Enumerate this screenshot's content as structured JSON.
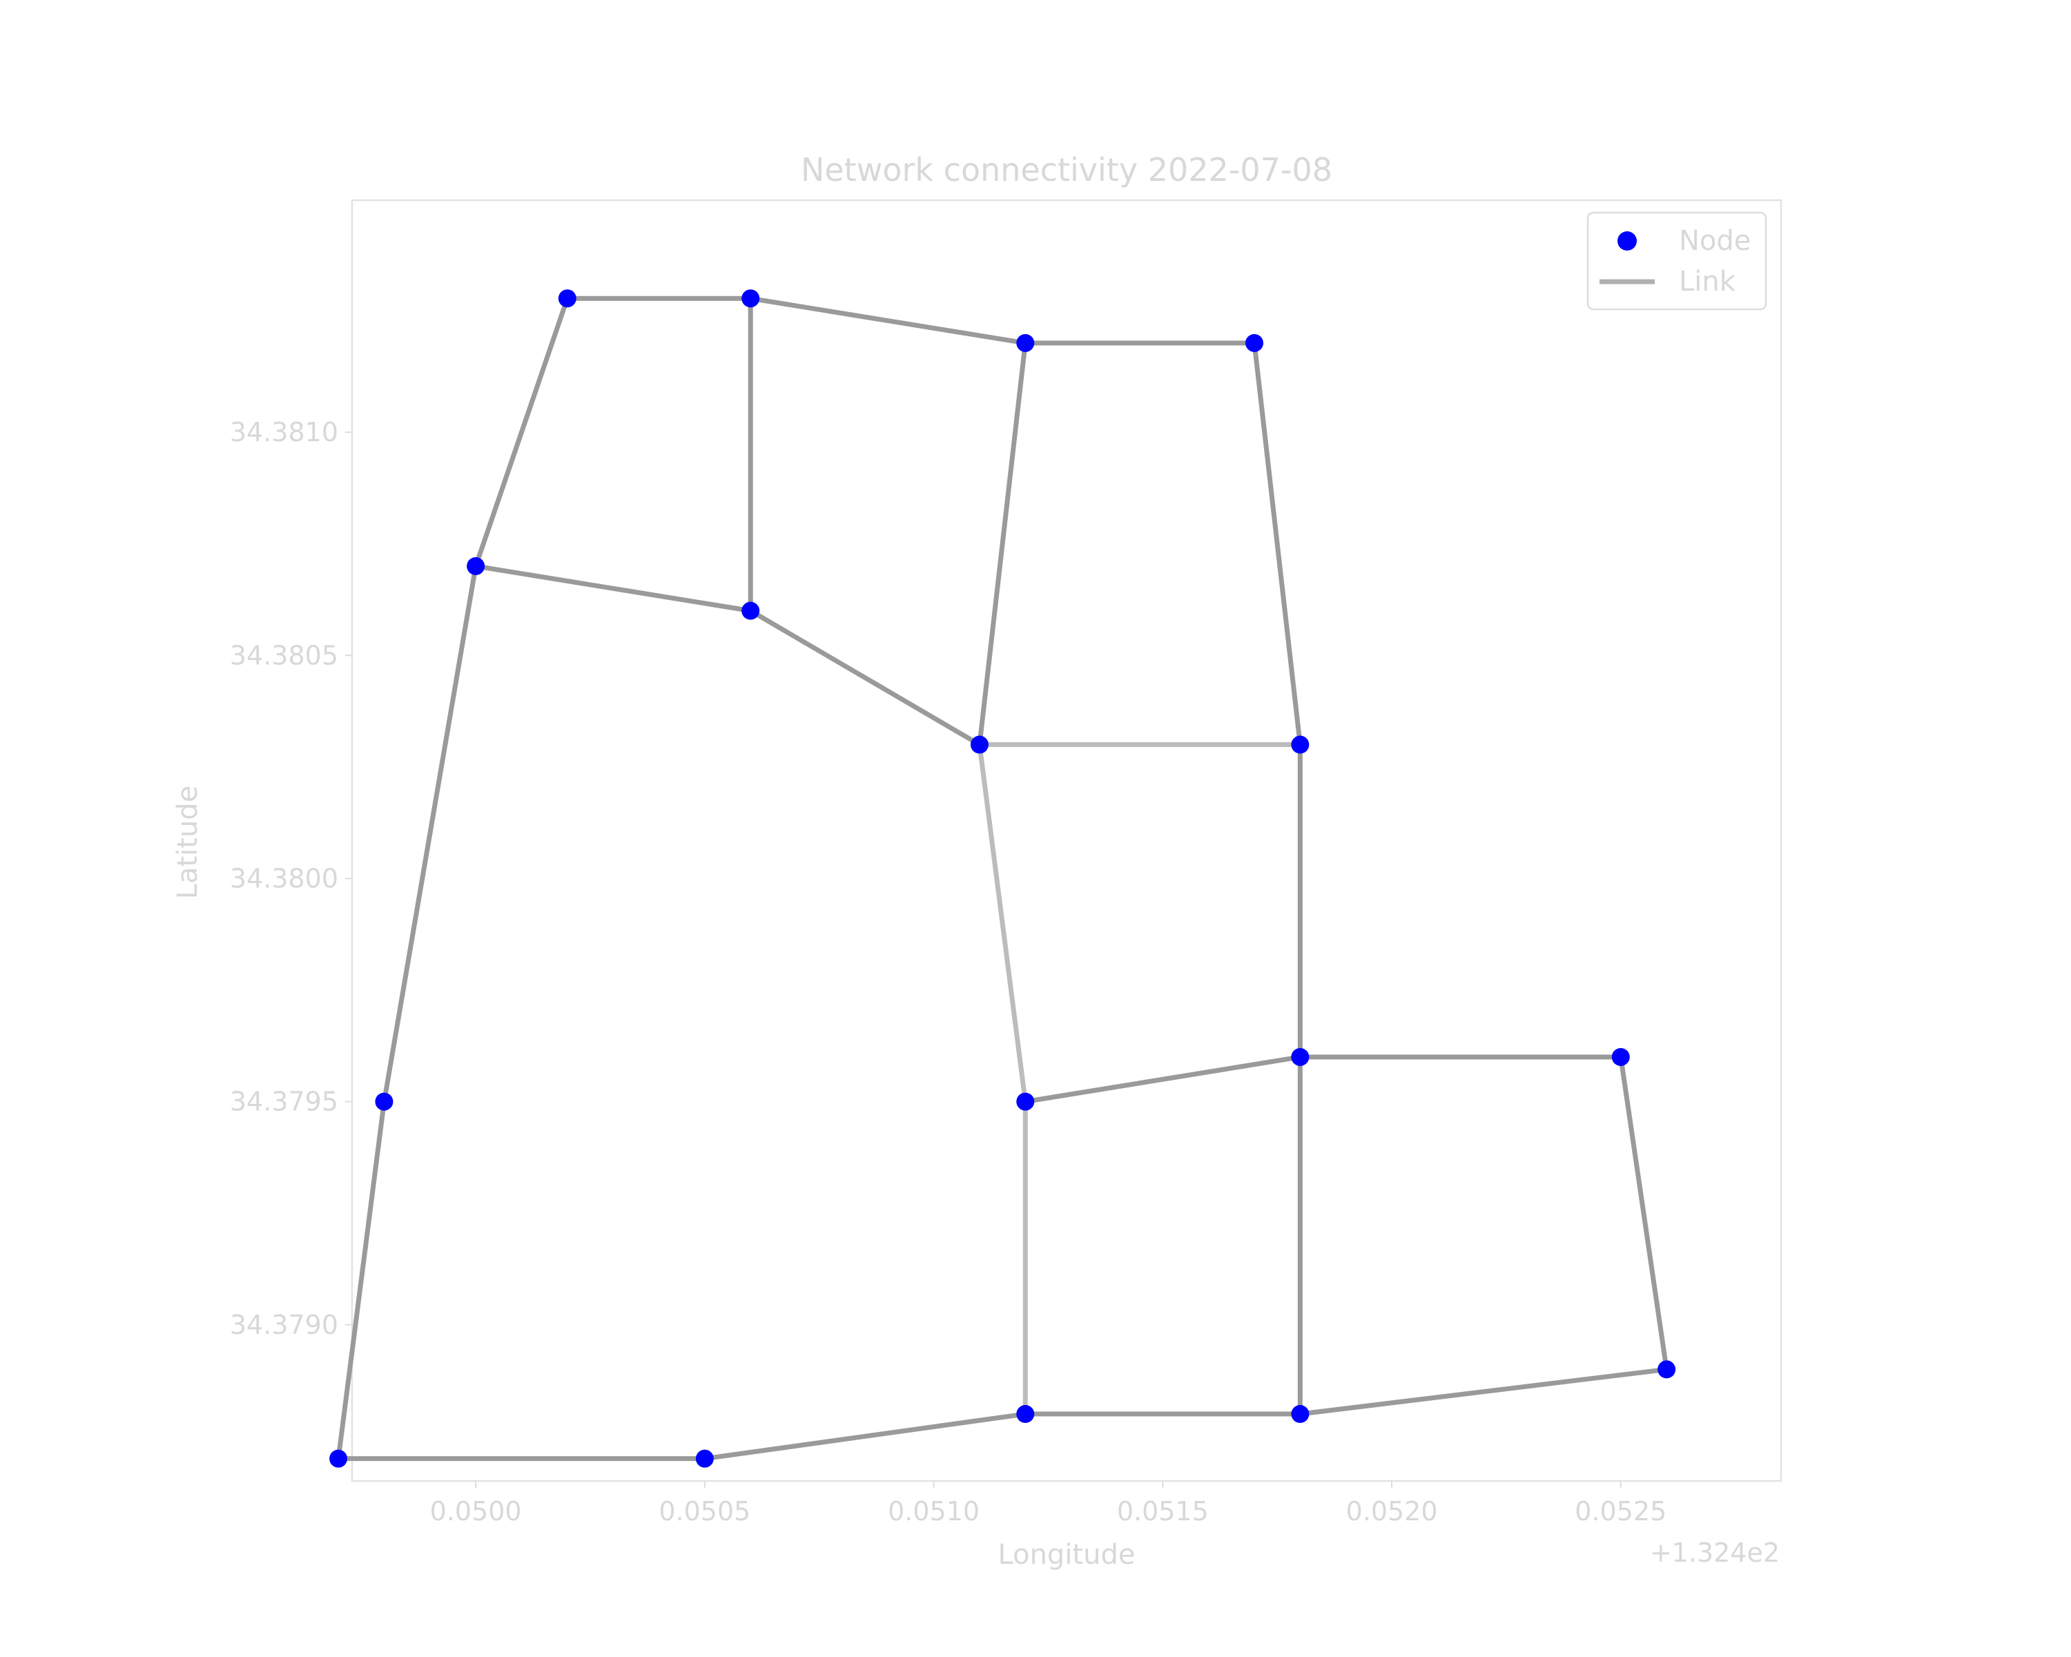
{
  "chart_data": {
    "type": "scatter",
    "title": "Network connectivity 2022-07-08",
    "xlabel": "Longitude",
    "ylabel": "Latitude",
    "x_offset_label": "+1.324e2",
    "xlim": [
      132.44973,
      132.45285
    ],
    "ylim": [
      34.37865,
      34.38152
    ],
    "x_ticks": [
      132.45,
      132.4505,
      132.451,
      132.4515,
      132.452,
      132.4525
    ],
    "x_tick_labels": [
      "0.0500",
      "0.0505",
      "0.0510",
      "0.0515",
      "0.0520",
      "0.0525"
    ],
    "y_ticks": [
      34.379,
      34.3795,
      34.38,
      34.3805,
      34.381
    ],
    "y_tick_labels": [
      "34.3790",
      "34.3795",
      "34.3800",
      "34.3805",
      "34.3810"
    ],
    "grid": false,
    "legend": {
      "position": "top-right",
      "entries": [
        {
          "label": "Node",
          "marker": "circle",
          "color": "#0000ff"
        },
        {
          "label": "Link",
          "marker": "line",
          "color": "#b0b0b0"
        }
      ]
    },
    "series": [
      {
        "name": "Node",
        "color": "#0000ff",
        "points": [
          {
            "id": "n1",
            "x": 132.4497,
            "y": 34.3787
          },
          {
            "id": "n2",
            "x": 132.4498,
            "y": 34.3795
          },
          {
            "id": "n3",
            "x": 132.45,
            "y": 34.3807
          },
          {
            "id": "n4",
            "x": 132.4502,
            "y": 34.3813
          },
          {
            "id": "n5",
            "x": 132.4506,
            "y": 34.3813
          },
          {
            "id": "n6",
            "x": 132.4506,
            "y": 34.3806
          },
          {
            "id": "n7",
            "x": 132.4512,
            "y": 34.3812
          },
          {
            "id": "n8",
            "x": 132.4517,
            "y": 34.3812
          },
          {
            "id": "n9",
            "x": 132.4511,
            "y": 34.3803
          },
          {
            "id": "n10",
            "x": 132.4518,
            "y": 34.3803
          },
          {
            "id": "n11",
            "x": 132.4512,
            "y": 34.3795
          },
          {
            "id": "n12",
            "x": 132.4518,
            "y": 34.3796
          },
          {
            "id": "n13",
            "x": 132.4525,
            "y": 34.3796
          },
          {
            "id": "n14",
            "x": 132.4526,
            "y": 34.3789
          },
          {
            "id": "n15",
            "x": 132.4518,
            "y": 34.3788
          },
          {
            "id": "n16",
            "x": 132.4512,
            "y": 34.3788
          },
          {
            "id": "n17",
            "x": 132.4505,
            "y": 34.3787
          }
        ]
      },
      {
        "name": "Link",
        "color": "#a0a0a0",
        "edges": [
          {
            "from": "n1",
            "to": "n2",
            "shade": "#9a9a9a"
          },
          {
            "from": "n2",
            "to": "n3",
            "shade": "#9a9a9a"
          },
          {
            "from": "n3",
            "to": "n4",
            "shade": "#9a9a9a"
          },
          {
            "from": "n4",
            "to": "n5",
            "shade": "#9a9a9a"
          },
          {
            "from": "n5",
            "to": "n6",
            "shade": "#9a9a9a"
          },
          {
            "from": "n3",
            "to": "n6",
            "shade": "#9a9a9a"
          },
          {
            "from": "n5",
            "to": "n7",
            "shade": "#9a9a9a"
          },
          {
            "from": "n7",
            "to": "n8",
            "shade": "#9a9a9a"
          },
          {
            "from": "n6",
            "to": "n9",
            "shade": "#9a9a9a"
          },
          {
            "from": "n7",
            "to": "n9",
            "shade": "#9a9a9a"
          },
          {
            "from": "n8",
            "to": "n10",
            "shade": "#9a9a9a"
          },
          {
            "from": "n9",
            "to": "n10",
            "shade": "#bcbcbc"
          },
          {
            "from": "n9",
            "to": "n11",
            "shade": "#bcbcbc"
          },
          {
            "from": "n10",
            "to": "n12",
            "shade": "#9a9a9a"
          },
          {
            "from": "n11",
            "to": "n12",
            "shade": "#9a9a9a"
          },
          {
            "from": "n12",
            "to": "n13",
            "shade": "#9a9a9a"
          },
          {
            "from": "n13",
            "to": "n14",
            "shade": "#9a9a9a"
          },
          {
            "from": "n12",
            "to": "n15",
            "shade": "#9a9a9a"
          },
          {
            "from": "n14",
            "to": "n15",
            "shade": "#9a9a9a"
          },
          {
            "from": "n11",
            "to": "n16",
            "shade": "#bcbcbc"
          },
          {
            "from": "n15",
            "to": "n16",
            "shade": "#9a9a9a"
          },
          {
            "from": "n16",
            "to": "n17",
            "shade": "#9a9a9a"
          },
          {
            "from": "n1",
            "to": "n17",
            "shade": "#9a9a9a"
          }
        ]
      }
    ]
  }
}
